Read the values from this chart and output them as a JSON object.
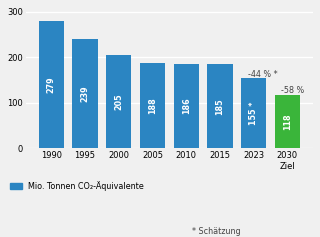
{
  "categories": [
    "1990",
    "1995",
    "2000",
    "2005",
    "2010",
    "2015",
    "2023",
    "2030\nZiel"
  ],
  "values": [
    279,
    239,
    205,
    188,
    186,
    185,
    155,
    118
  ],
  "bar_colors": [
    "#2b85c2",
    "#2b85c2",
    "#2b85c2",
    "#2b85c2",
    "#2b85c2",
    "#2b85c2",
    "#2b85c2",
    "#3ab53a"
  ],
  "bar_labels": [
    "279",
    "239",
    "205",
    "188",
    "186",
    "185",
    "155 *",
    "118"
  ],
  "ann_2023": {
    "text": "-44 % *",
    "color": "#444444"
  },
  "ann_2030": {
    "text": "-58 %",
    "color": "#444444"
  },
  "ylim": [
    0,
    310
  ],
  "yticks": [
    0,
    100,
    200,
    300
  ],
  "legend_label": "Mio. Tonnen CO₂-Äquivalente",
  "legend_color": "#2b85c2",
  "footnote": "* Schätzung",
  "background_color": "#f0f0f0",
  "grid_color": "#ffffff",
  "bar_label_color": "#ffffff",
  "bar_label_fontsize": 5.8,
  "annotation_fontsize": 5.8,
  "tick_fontsize": 6.0,
  "legend_fontsize": 5.8,
  "footnote_fontsize": 5.8
}
